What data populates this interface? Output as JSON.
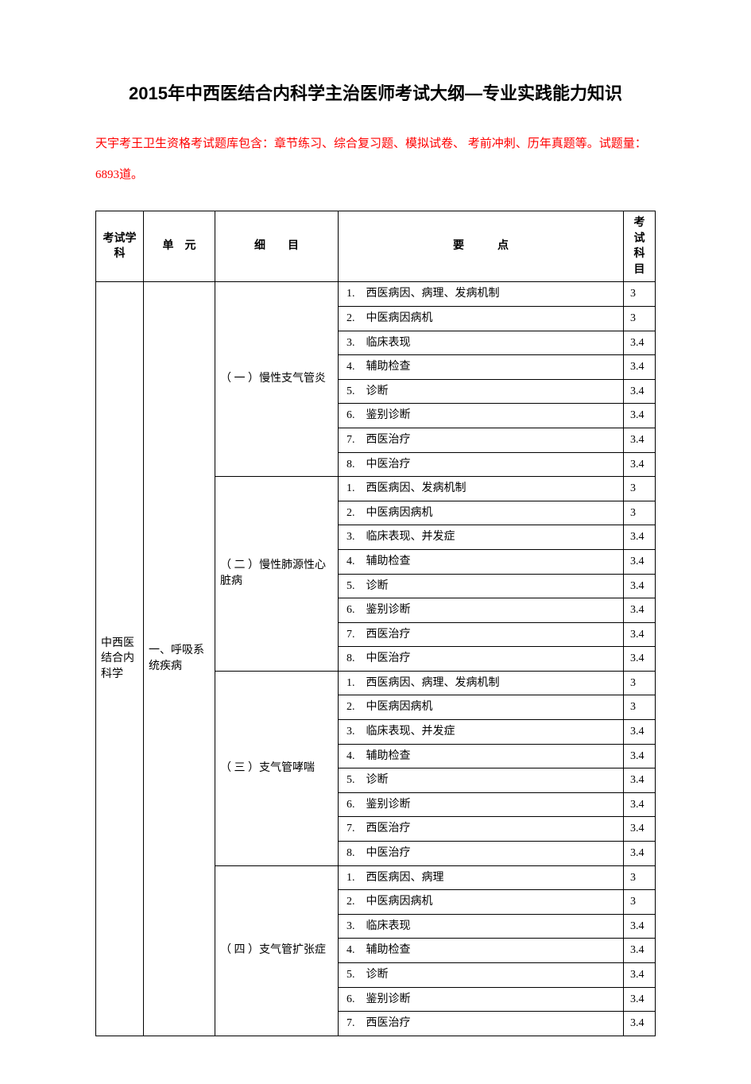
{
  "title": "2015年中西医结合内科学主治医师考试大纲—专业实践能力知识",
  "intro": "天宇考王卫生资格考试题库包含：章节练习、综合复习题、模拟试卷、 考前冲刺、历年真题等。试题量：6893道。",
  "headers": {
    "subject": "考试学科",
    "unit": "单　元",
    "item": "细　　目",
    "point": "要　　　点",
    "exam": "考试科目"
  },
  "subject": "中西医结合内科学",
  "unit": "一、呼吸系统疾病",
  "sections": [
    {
      "name": "（ 一 ）慢性支气管炎",
      "rows": [
        {
          "no": "1.",
          "txt": "西医病因、病理、发病机制",
          "exam": "3"
        },
        {
          "no": "2.",
          "txt": "中医病因病机",
          "exam": "3"
        },
        {
          "no": "3.",
          "txt": "临床表现",
          "exam": "3.4"
        },
        {
          "no": "4.",
          "txt": "辅助检查",
          "exam": "3.4"
        },
        {
          "no": "5.",
          "txt": "诊断",
          "exam": "3.4"
        },
        {
          "no": "6.",
          "txt": "鉴别诊断",
          "exam": "3.4"
        },
        {
          "no": "7.",
          "txt": "西医治疗",
          "exam": "3.4"
        },
        {
          "no": "8.",
          "txt": "中医治疗",
          "exam": "3.4"
        }
      ]
    },
    {
      "name": "（ 二 ）慢性肺源性心脏病",
      "rows": [
        {
          "no": "1.",
          "txt": "西医病因、发病机制",
          "exam": "3"
        },
        {
          "no": "2.",
          "txt": "中医病因病机",
          "exam": "3"
        },
        {
          "no": "3.",
          "txt": "临床表现、并发症",
          "exam": "3.4"
        },
        {
          "no": "4.",
          "txt": "辅助检查",
          "exam": "3.4"
        },
        {
          "no": "5.",
          "txt": "诊断",
          "exam": "3.4"
        },
        {
          "no": "6.",
          "txt": "鉴别诊断",
          "exam": "3.4"
        },
        {
          "no": "7.",
          "txt": "西医治疗",
          "exam": "3.4"
        },
        {
          "no": "8.",
          "txt": "中医治疗",
          "exam": "3.4"
        }
      ]
    },
    {
      "name": "（ 三 ）支气管哮喘",
      "rows": [
        {
          "no": "1.",
          "txt": "西医病因、病理、发病机制",
          "exam": "3"
        },
        {
          "no": "2.",
          "txt": "中医病因病机",
          "exam": "3"
        },
        {
          "no": "3.",
          "txt": "临床表现、并发症",
          "exam": "3.4"
        },
        {
          "no": "4.",
          "txt": "辅助检查",
          "exam": "3.4"
        },
        {
          "no": "5.",
          "txt": "诊断",
          "exam": "3.4"
        },
        {
          "no": "6.",
          "txt": "鉴别诊断",
          "exam": "3.4"
        },
        {
          "no": "7.",
          "txt": "西医治疗",
          "exam": "3.4"
        },
        {
          "no": "8.",
          "txt": "中医治疗",
          "exam": "3.4"
        }
      ]
    },
    {
      "name": "（ 四 ）支气管扩张症",
      "rows": [
        {
          "no": "1.",
          "txt": "西医病因、病理",
          "exam": "3"
        },
        {
          "no": "2.",
          "txt": "中医病因病机",
          "exam": "3"
        },
        {
          "no": "3.",
          "txt": "临床表现",
          "exam": "3.4"
        },
        {
          "no": "4.",
          "txt": "辅助检查",
          "exam": "3.4"
        },
        {
          "no": "5.",
          "txt": "诊断",
          "exam": "3.4"
        },
        {
          "no": "6.",
          "txt": "鉴别诊断",
          "exam": "3.4"
        },
        {
          "no": "7.",
          "txt": "西医治疗",
          "exam": "3.4"
        }
      ]
    }
  ],
  "colors": {
    "background": "#ffffff",
    "text": "#000000",
    "intro": "#ff0000",
    "border": "#000000"
  }
}
